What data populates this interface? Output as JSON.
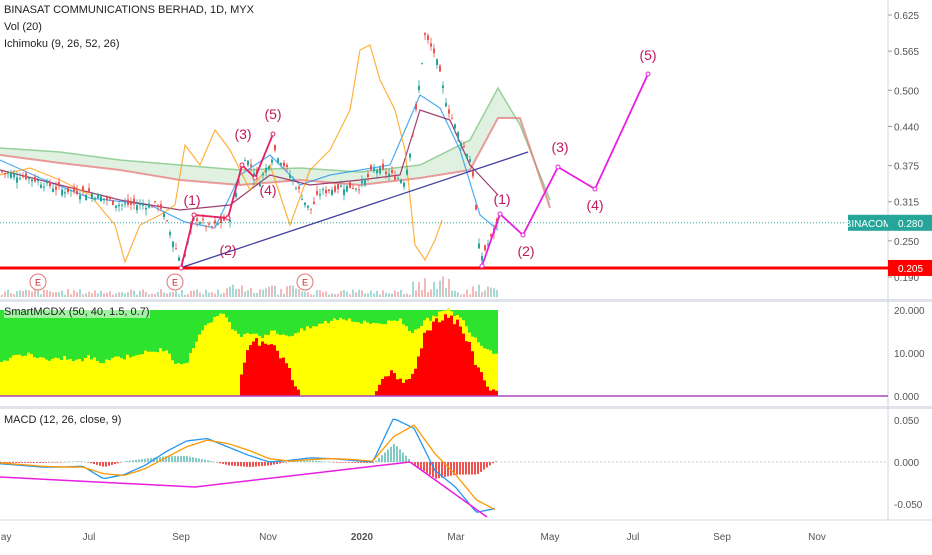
{
  "header": {
    "title": "BINASAT COMMUNICATIONS BERHAD, 1D, MYX",
    "volume_label": "Vol (20)",
    "ichimoku_label": "Ichimoku (9, 26, 52, 26)"
  },
  "panes": {
    "mcdx_label": "SmartMCDX (50, 40, 1.5, 0.7)",
    "macd_label": "MACD (12, 26, close, 9)"
  },
  "colors": {
    "candle_up": "#26a69a",
    "candle_down": "#ef5350",
    "kumo_bull": "#a5d6a7",
    "kumo_bear": "#f4b6b6",
    "wave": "#e91e63",
    "trendline": "#3f3f9f",
    "support": "#ff0000",
    "ticker_tag": "#26a69a",
    "mcdx_green": "#2ee32e",
    "mcdx_yellow": "#ffff00",
    "mcdx_red": "#ff0000",
    "macd_line": "#2196f3",
    "signal_line": "#ff9800",
    "conversion": "#2196f3",
    "base": "#880e4f",
    "lagging": "#ff9800"
  },
  "chart_data": [
    {
      "type": "candlestick",
      "title": "BINASAT COMMUNICATIONS BERHAD, 1D, MYX",
      "y_ticks": [
        "0.625",
        "0.565",
        "0.500",
        "0.440",
        "0.375",
        "0.315",
        "0.250",
        "0.190"
      ],
      "ylim": [
        0.19,
        0.625
      ],
      "x_ticks": [
        "May",
        "Jul",
        "Sep",
        "Nov",
        "2020",
        "Mar",
        "May",
        "Jul",
        "Sep",
        "Nov"
      ],
      "series": [
        {
          "name": "Price",
          "points": [
            [
              "May",
              0.36
            ],
            [
              "Jun",
              0.33
            ],
            [
              "Jul",
              0.325
            ],
            [
              "Aug",
              0.31
            ],
            [
              "Sep",
              0.21
            ],
            [
              "mid-Sep",
              0.3
            ],
            [
              "Oct",
              0.4
            ],
            [
              "mid-Oct",
              0.33
            ],
            [
              "Nov",
              0.4
            ],
            [
              "Dec",
              0.3
            ],
            [
              "mid-Dec",
              0.34
            ],
            [
              "2020",
              0.37
            ],
            [
              "mid-Jan",
              0.35
            ],
            [
              "Feb",
              0.4
            ],
            [
              "mid-Feb",
              0.6
            ],
            [
              "Mar",
              0.44
            ],
            [
              "mid-Mar",
              0.21
            ],
            [
              "late-Mar",
              0.28
            ]
          ]
        },
        {
          "name": "Wave count",
          "points": [
            [
              "(1)",
              0.29
            ],
            [
              "(2)",
              0.265
            ],
            [
              "(3)",
              0.37
            ],
            [
              "(4)",
              0.335
            ],
            [
              "(5)",
              0.53
            ]
          ]
        }
      ],
      "wave_labels": [
        {
          "text": "(1)",
          "at": "Sep"
        },
        {
          "text": "(2)",
          "at": "Sep"
        },
        {
          "text": "(3)",
          "at": "Oct"
        },
        {
          "text": "(4)",
          "at": "Oct"
        },
        {
          "text": "(5)",
          "at": "Oct"
        },
        {
          "text": "(1)",
          "at": "Mar"
        },
        {
          "text": "(2)",
          "at": "Apr"
        },
        {
          "text": "(3)",
          "at": "May"
        },
        {
          "text": "(4)",
          "at": "Jun"
        },
        {
          "text": "(5)",
          "at": "Jul"
        }
      ],
      "earnings_markers": [
        "E",
        "E",
        "E"
      ],
      "support_level": 0.205,
      "price_tag": {
        "ticker": "BINACOM",
        "value": "0.280"
      },
      "support_tag": "0.205"
    },
    {
      "type": "area",
      "title": "SmartMCDX (50, 40, 1.5, 0.7)",
      "y_ticks": [
        "20.000",
        "10.000",
        "0.000"
      ],
      "ylim": [
        0,
        20
      ],
      "series": [
        {
          "name": "Green",
          "level": 20
        },
        {
          "name": "Yellow",
          "values": [
            8,
            9,
            10,
            9,
            8,
            9,
            8,
            9,
            8,
            9,
            9,
            10,
            10,
            11,
            8,
            8,
            15,
            18,
            19,
            14,
            15,
            14,
            15,
            14,
            15,
            16,
            17,
            18,
            18,
            17,
            17,
            17,
            18,
            15,
            17,
            19,
            20,
            18,
            14,
            11,
            10
          ]
        },
        {
          "name": "Red",
          "values": [
            0,
            0,
            0,
            0,
            0,
            0,
            0,
            0,
            0,
            0,
            0,
            0,
            0,
            0,
            0,
            0,
            0,
            0,
            0,
            0,
            12,
            13,
            12,
            7,
            0,
            0,
            0,
            0,
            0,
            0,
            0,
            6,
            3,
            4,
            14,
            18,
            19,
            16,
            9,
            3,
            0
          ]
        }
      ]
    },
    {
      "type": "line",
      "title": "MACD (12, 26, close, 9)",
      "y_ticks": [
        "0.050",
        "0.000",
        "-0.050"
      ],
      "ylim": [
        -0.065,
        0.06
      ],
      "series": [
        {
          "name": "MACD",
          "values": [
            -0.002,
            -0.004,
            -0.006,
            -0.006,
            -0.005,
            -0.02,
            -0.015,
            -0.004,
            0.012,
            0.025,
            0.028,
            0.018,
            0.008,
            0.0,
            0.002,
            0.005,
            0.004,
            0.002,
            0.0,
            0.052,
            0.04,
            -0.01,
            -0.03,
            -0.06,
            -0.055
          ]
        },
        {
          "name": "Signal",
          "values": [
            -0.001,
            -0.003,
            -0.005,
            -0.006,
            -0.006,
            -0.014,
            -0.016,
            -0.008,
            0.005,
            0.018,
            0.026,
            0.022,
            0.014,
            0.004,
            0.001,
            0.003,
            0.004,
            0.003,
            0.001,
            0.03,
            0.044,
            0.01,
            -0.015,
            -0.045,
            -0.058
          ]
        }
      ]
    }
  ]
}
